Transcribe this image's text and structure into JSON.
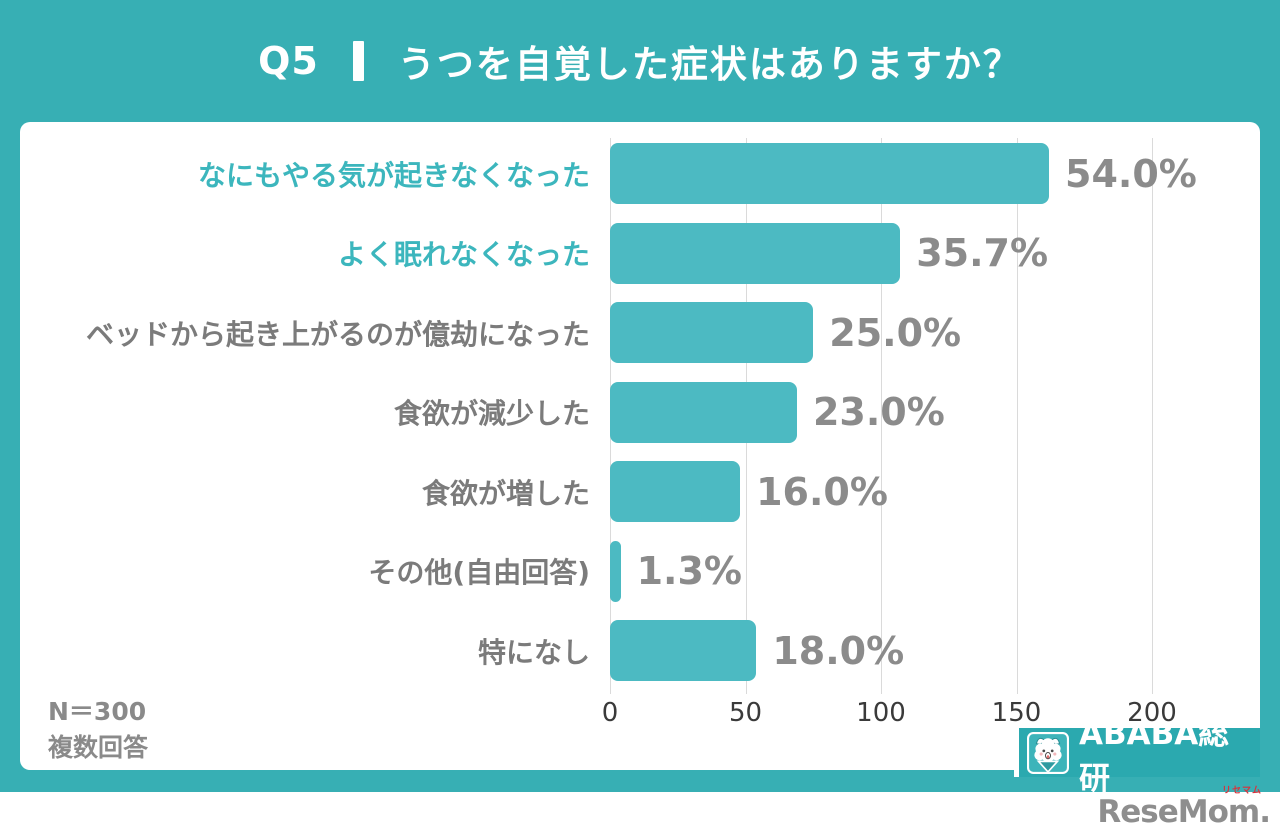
{
  "header": {
    "question_number": "Q5",
    "title": "うつを自覚した症状はありますか？"
  },
  "chart_data": {
    "type": "bar",
    "orientation": "horizontal",
    "title": "うつを自覚した症状はありますか？",
    "xlabel": "",
    "ylabel": "",
    "x_ticks": [
      0,
      50,
      100,
      150,
      200
    ],
    "x_range": [
      0,
      232
    ],
    "grid": true,
    "sample_size": 300,
    "rows": [
      {
        "label": "なにもやる気が起きなくなった",
        "pct": 54.0,
        "count": 162,
        "pct_label": "54.0%",
        "highlight": true
      },
      {
        "label": "よく眠れなくなった",
        "pct": 35.7,
        "count": 107.1,
        "pct_label": "35.7%",
        "highlight": true
      },
      {
        "label": "ベッドから起き上がるのが億劫になった",
        "pct": 25.0,
        "count": 75,
        "pct_label": "25.0%",
        "highlight": false
      },
      {
        "label": "食欲が減少した",
        "pct": 23.0,
        "count": 69,
        "pct_label": "23.0%",
        "highlight": false
      },
      {
        "label": "食欲が増した",
        "pct": 16.0,
        "count": 48,
        "pct_label": "16.0%",
        "highlight": false
      },
      {
        "label": "その他(自由回答)",
        "pct": 1.3,
        "count": 3.9,
        "pct_label": "1.3%",
        "highlight": false
      },
      {
        "label": "特になし",
        "pct": 18.0,
        "count": 54,
        "pct_label": "18.0%",
        "highlight": false
      }
    ]
  },
  "footnote": {
    "lines": [
      "N＝300",
      "複数回答"
    ]
  },
  "branding": {
    "logo_text": "ABABA総研",
    "mascot_icon": "alpaca-mascot-icon"
  },
  "watermark": {
    "text": "ReseMom.",
    "ruby": "リセマム"
  },
  "colors": {
    "background_teal": "#37afb4",
    "bar_teal": "#4cbac2",
    "highlight_label_teal": "#3cb6bd",
    "category_label_gray": "#7b7b7b",
    "value_label_gray": "#8b8b8b",
    "logo_box_teal": "#2ba9af",
    "watermark_gray": "#8e8e8e",
    "watermark_red": "#d8333c",
    "gridline_gray": "#dadada"
  }
}
